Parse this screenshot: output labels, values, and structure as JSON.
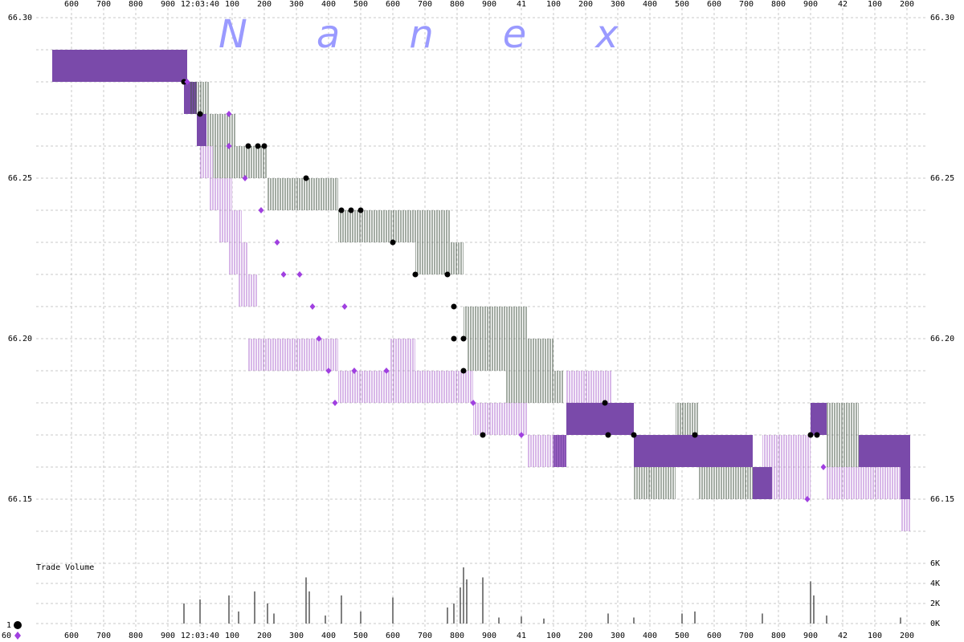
{
  "chart_data": {
    "type": "quotes",
    "watermark": "Nanex",
    "xlim": [
      39.49,
      42.265
    ],
    "xticks": [
      {
        "value": 39.6,
        "label": "600"
      },
      {
        "value": 39.7,
        "label": "700"
      },
      {
        "value": 39.8,
        "label": "800"
      },
      {
        "value": 39.9,
        "label": "900"
      },
      {
        "value": 40.0,
        "label": "12:03:40"
      },
      {
        "value": 40.1,
        "label": "100"
      },
      {
        "value": 40.2,
        "label": "200"
      },
      {
        "value": 40.3,
        "label": "300"
      },
      {
        "value": 40.4,
        "label": "400"
      },
      {
        "value": 40.5,
        "label": "500"
      },
      {
        "value": 40.6,
        "label": "600"
      },
      {
        "value": 40.7,
        "label": "700"
      },
      {
        "value": 40.8,
        "label": "800"
      },
      {
        "value": 40.9,
        "label": "900"
      },
      {
        "value": 41.0,
        "label": "41"
      },
      {
        "value": 41.1,
        "label": "100"
      },
      {
        "value": 41.2,
        "label": "200"
      },
      {
        "value": 41.3,
        "label": "300"
      },
      {
        "value": 41.4,
        "label": "400"
      },
      {
        "value": 41.5,
        "label": "500"
      },
      {
        "value": 41.6,
        "label": "600"
      },
      {
        "value": 41.7,
        "label": "700"
      },
      {
        "value": 41.8,
        "label": "800"
      },
      {
        "value": 41.9,
        "label": "900"
      },
      {
        "value": 42.0,
        "label": "42"
      },
      {
        "value": 42.1,
        "label": "100"
      },
      {
        "value": 42.2,
        "label": "200"
      }
    ],
    "ylim": [
      66.1325,
      66.3
    ],
    "yticks": [
      66.15,
      {
        "value": 66.2,
        "label": "66.20"
      },
      66.25,
      {
        "value": 66.3,
        "label": "66.30"
      }
    ],
    "y_grid": [
      66.14,
      66.16,
      66.17,
      66.18,
      66.19,
      66.21,
      66.22,
      66.23,
      66.24,
      66.26,
      66.27,
      66.28,
      66.29
    ],
    "grid": true,
    "bands": [
      {
        "color": "#7a4aaa",
        "style": "solid",
        "values": [
          [
            39.54,
            39.96,
            66.28,
            66.29
          ],
          [
            39.95,
            39.99,
            66.27,
            66.28
          ],
          [
            39.99,
            40.02,
            66.26,
            66.27
          ],
          [
            41.1,
            41.14,
            66.16,
            66.17
          ],
          [
            41.14,
            41.35,
            66.17,
            66.18
          ],
          [
            41.35,
            41.72,
            66.16,
            66.17
          ],
          [
            41.72,
            41.78,
            66.15,
            66.16
          ],
          [
            41.9,
            41.95,
            66.17,
            66.18
          ],
          [
            42.05,
            42.21,
            66.16,
            66.17
          ],
          [
            42.18,
            42.21,
            66.15,
            66.16
          ]
        ]
      },
      {
        "color": "#4a5a4a",
        "style": "hatch",
        "values": [
          [
            39.97,
            40.03,
            66.27,
            66.28
          ],
          [
            40.02,
            40.11,
            66.26,
            66.27
          ],
          [
            40.04,
            40.21,
            66.25,
            66.26
          ],
          [
            40.21,
            40.43,
            66.24,
            66.25
          ],
          [
            40.43,
            40.78,
            66.23,
            66.24
          ],
          [
            40.67,
            40.82,
            66.22,
            66.23
          ],
          [
            40.82,
            41.02,
            66.2,
            66.21
          ],
          [
            40.83,
            41.1,
            66.19,
            66.2
          ],
          [
            40.95,
            41.13,
            66.18,
            66.19
          ],
          [
            41.35,
            41.48,
            66.15,
            66.16
          ],
          [
            41.55,
            41.72,
            66.15,
            66.16
          ],
          [
            41.95,
            42.05,
            66.16,
            66.18
          ],
          [
            41.48,
            41.55,
            66.17,
            66.18
          ]
        ]
      },
      {
        "color": "#b070d0",
        "style": "hatch",
        "values": [
          [
            40.0,
            40.04,
            66.25,
            66.26
          ],
          [
            40.03,
            40.1,
            66.24,
            66.25
          ],
          [
            40.06,
            40.13,
            66.23,
            66.24
          ],
          [
            40.09,
            40.15,
            66.22,
            66.23
          ],
          [
            40.12,
            40.18,
            66.21,
            66.22
          ],
          [
            40.15,
            40.43,
            66.19,
            66.2
          ],
          [
            40.43,
            40.85,
            66.18,
            66.19
          ],
          [
            40.59,
            40.67,
            66.19,
            66.2
          ],
          [
            40.85,
            41.02,
            66.17,
            66.18
          ],
          [
            41.02,
            41.14,
            66.16,
            66.17
          ],
          [
            41.14,
            41.28,
            66.18,
            66.19
          ],
          [
            41.78,
            41.9,
            66.15,
            66.16
          ],
          [
            41.95,
            42.18,
            66.15,
            66.16
          ],
          [
            42.18,
            42.21,
            66.14,
            66.15
          ],
          [
            41.75,
            41.9,
            66.16,
            66.17
          ]
        ]
      }
    ],
    "series": [
      {
        "name": "1",
        "color": "#000000",
        "marker": "circle",
        "values": [
          [
            39.95,
            66.28
          ],
          [
            40.0,
            66.27
          ],
          [
            40.15,
            66.26
          ],
          [
            40.18,
            66.26
          ],
          [
            40.2,
            66.26
          ],
          [
            40.33,
            66.25
          ],
          [
            40.44,
            66.24
          ],
          [
            40.47,
            66.24
          ],
          [
            40.5,
            66.24
          ],
          [
            40.6,
            66.23
          ],
          [
            40.67,
            66.22
          ],
          [
            40.77,
            66.22
          ],
          [
            40.79,
            66.21
          ],
          [
            40.79,
            66.2
          ],
          [
            40.82,
            66.2
          ],
          [
            40.82,
            66.19
          ],
          [
            40.88,
            66.17
          ],
          [
            41.26,
            66.18
          ],
          [
            41.27,
            66.17
          ],
          [
            41.35,
            66.17
          ],
          [
            41.54,
            66.17
          ],
          [
            41.9,
            66.17
          ],
          [
            41.92,
            66.17
          ]
        ]
      },
      {
        "name": "60",
        "color": "#a040e0",
        "marker": "diamond",
        "values": [
          [
            39.96,
            66.28
          ],
          [
            40.09,
            66.27
          ],
          [
            40.09,
            66.26
          ],
          [
            40.14,
            66.25
          ],
          [
            40.19,
            66.24
          ],
          [
            40.24,
            66.23
          ],
          [
            40.26,
            66.22
          ],
          [
            40.31,
            66.22
          ],
          [
            40.35,
            66.21
          ],
          [
            40.37,
            66.2
          ],
          [
            40.4,
            66.19
          ],
          [
            40.45,
            66.21
          ],
          [
            40.48,
            66.19
          ],
          [
            40.42,
            66.18
          ],
          [
            40.58,
            66.19
          ],
          [
            40.85,
            66.18
          ],
          [
            41.0,
            66.17
          ],
          [
            41.89,
            66.15
          ],
          [
            41.94,
            66.16
          ]
        ]
      }
    ],
    "volume": {
      "label": "Trade Volume",
      "color": "#000000",
      "ylim": [
        0,
        6000
      ],
      "yticks": [
        {
          "value": 0,
          "label": "0K"
        },
        {
          "value": 2000,
          "label": "2K"
        },
        {
          "value": 4000,
          "label": "4K"
        },
        {
          "value": 6000,
          "label": "6K"
        }
      ],
      "x": [
        39.95,
        40.0,
        40.09,
        40.17,
        40.21,
        40.33,
        40.34,
        40.44,
        40.6,
        40.77,
        40.82,
        40.83,
        40.88,
        41.27,
        41.9,
        41.91,
        40.23,
        40.5,
        40.81,
        40.79,
        41.5,
        41.54,
        40.12,
        40.39,
        40.93,
        41.0,
        41.75,
        41.95,
        42.18,
        41.35,
        41.07
      ],
      "values": [
        2000,
        2400,
        2800,
        3200,
        2000,
        4600,
        3200,
        2800,
        2600,
        1600,
        5600,
        4400,
        4600,
        1000,
        4200,
        2800,
        1000,
        1200,
        3600,
        2000,
        1000,
        1200,
        1200,
        800,
        600,
        700,
        1000,
        800,
        600,
        600,
        500
      ]
    }
  }
}
